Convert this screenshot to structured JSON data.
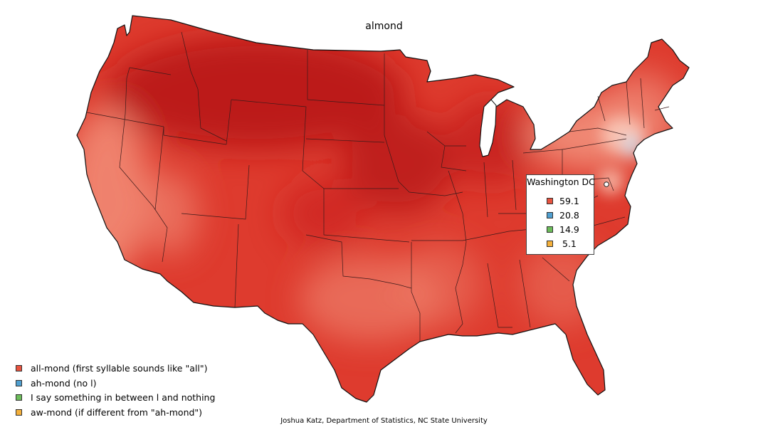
{
  "title": "almond",
  "legend": [
    {
      "label": "all-mond (first syllable sounds like \"all\")",
      "color": "#e8533f"
    },
    {
      "label": "ah-mond (no l)",
      "color": "#4f9fd0"
    },
    {
      "label": "I say something in between l and nothing",
      "color": "#6cbd5a"
    },
    {
      "label": "aw-mond (if different from \"ah-mond\")",
      "color": "#f4b03b"
    }
  ],
  "selected_location": {
    "name": "Washington DC",
    "values": [
      {
        "value": "59.1",
        "color": "#e8533f"
      },
      {
        "value": "20.8",
        "color": "#4f9fd0"
      },
      {
        "value": "14.9",
        "color": "#6cbd5a"
      },
      {
        "value": "5.1",
        "color": "#f4b03b"
      }
    ]
  },
  "credit": "Joshua Katz, Department of Statistics, NC State University",
  "colors": {
    "map_dark": "#b81818",
    "map_mid": "#de3b2e",
    "map_light": "#f28e78",
    "map_pale": "#f8c8b8",
    "map_blue": "#c8ddee"
  }
}
